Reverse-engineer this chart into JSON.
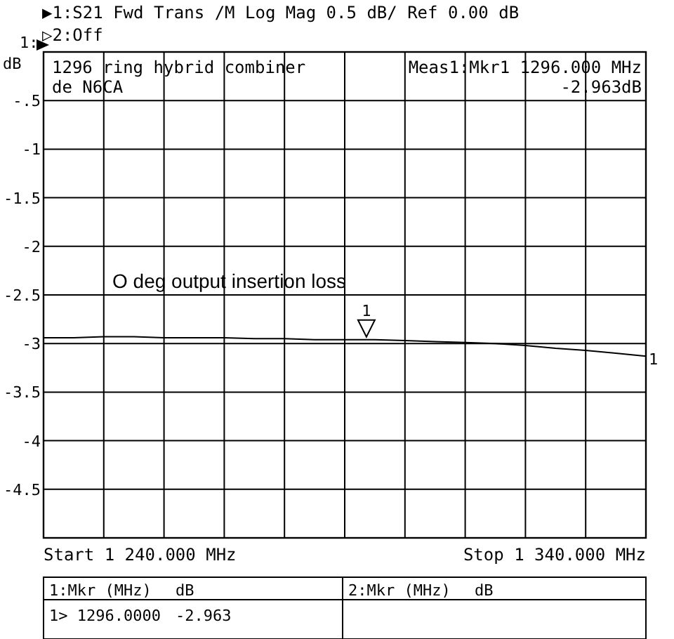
{
  "chart_data": {
    "type": "line",
    "title": "▶1:S21 Fwd Trans /M Log Mag   0.5 dB/ Ref   0.00 dB",
    "subtitle": "▷2:Off",
    "ylabel": "1: dB",
    "categories": [
      null,
      null,
      null,
      null,
      null,
      null,
      null,
      null,
      null,
      null,
      null,
      null,
      null,
      null,
      null,
      null,
      null,
      null,
      null,
      null,
      null
    ],
    "series": [
      {
        "color": "#000000",
        "values": [
          -2.94,
          -2.94,
          -2.93,
          -2.93,
          -2.94,
          -2.94,
          -2.94,
          -2.95,
          -2.95,
          -2.96,
          -2.96,
          -2.96,
          -2.97,
          -2.98,
          -2.99,
          -3.0,
          -3.02,
          -3.05,
          -3.07,
          -3.1,
          -3.13
        ]
      }
    ],
    "ylim": [
      -5,
      0
    ],
    "yticks": [
      {
        "value": 0,
        "label": null
      },
      {
        "value": -0.5,
        "label": "-.5"
      },
      {
        "value": -1,
        "label": "-1"
      },
      {
        "value": -1.5,
        "label": "-1.5"
      },
      {
        "value": -2,
        "label": "-2"
      },
      {
        "value": -2.5,
        "label": "-2.5"
      },
      {
        "value": -3,
        "label": "-3"
      },
      {
        "value": -3.5,
        "label": "-3.5"
      },
      {
        "value": -4,
        "label": "-4"
      },
      {
        "value": -4.5,
        "label": "-4.5"
      },
      {
        "value": -5,
        "label": null
      }
    ],
    "grid": true,
    "marker": "none",
    "line_style": "solid",
    "annotations": [
      "1296 ring hybrid combiner",
      "de N6CA",
      "Meas1:Mkr1 1296.000 MHz",
      "-2.963dB",
      "O deg output insertion loss",
      "Start 1 240.000 MHz",
      "Stop 1 340.000 MHz",
      "1:Mkr (MHz)",
      "dB",
      "1> 1296.0000",
      "-2.963",
      "2:Mkr (MHz)",
      "dB",
      "1",
      "1"
    ]
  }
}
